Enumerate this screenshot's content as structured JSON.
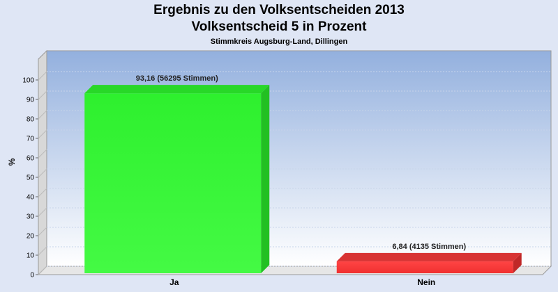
{
  "chart_data": {
    "type": "bar",
    "title": "Ergebnis zu den Volksentscheiden 2013",
    "subtitle": "Volksentscheid 5 in Prozent",
    "subsubtitle": "Stimmkreis Augsburg-Land, Dillingen",
    "ylabel": "%",
    "ylim": [
      0,
      100
    ],
    "yticks": [
      "0",
      "10",
      "20",
      "30",
      "40",
      "50",
      "60",
      "70",
      "80",
      "90",
      "100"
    ],
    "categories": [
      "Ja",
      "Nein"
    ],
    "values": [
      93.16,
      6.84
    ],
    "data_labels": [
      "93,16 (56295 Stimmen)",
      "6,84 (4135 Stimmen)"
    ],
    "colors": [
      "#33ee33",
      "#ee3333"
    ],
    "grid": true
  }
}
